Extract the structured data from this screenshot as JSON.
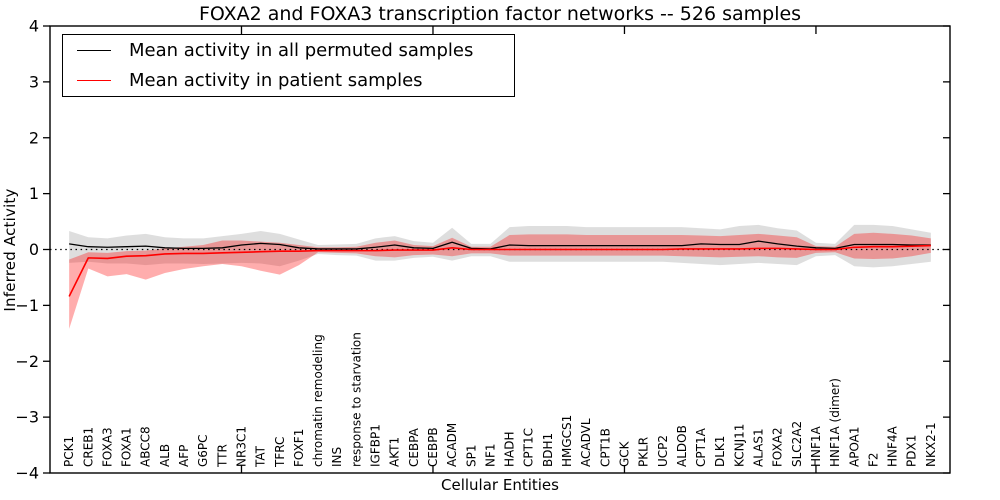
{
  "figure": {
    "title": "FOXA2 and FOXA3 transcription factor networks -- 526 samples",
    "xlabel": "Cellular Entities",
    "ylabel": "Inferred Activity",
    "legend": {
      "position": "upper left",
      "entries": [
        {
          "label": "Mean activity in all permuted samples",
          "color": "#000000"
        },
        {
          "label": "Mean activity in patient samples",
          "color": "#ff0000"
        }
      ]
    }
  },
  "chart_data": {
    "type": "line",
    "title": "FOXA2 and FOXA3 transcription factor networks -- 526 samples",
    "xlabel": "Cellular Entities",
    "ylabel": "Inferred Activity",
    "ylim": [
      -4,
      4
    ],
    "yticks": [
      4,
      3,
      2,
      1,
      0,
      -1,
      -2,
      -3,
      -4
    ],
    "ytick_labels": [
      "4",
      "3",
      "2",
      "1",
      "0",
      "−1",
      "−2",
      "−3",
      "−4"
    ],
    "xtick_positions": [
      10,
      20,
      30,
      40
    ],
    "grid": false,
    "legend_position": "upper left",
    "zero_line": {
      "y": 0,
      "style": "dotted",
      "color": "#000000"
    },
    "categories": [
      "PCK1",
      "CREB1",
      "FOXA3",
      "FOXA1",
      "ABCC8",
      "ALB",
      "AFP",
      "G6PC",
      "TTR",
      "NR3C1",
      "TAT",
      "TFRC",
      "FOXF1",
      "chromatin remodeling",
      "INS",
      "response to starvation",
      "IGFBP1",
      "AKT1",
      "CEBPA",
      "CEBPB",
      "ACADM",
      "SP1",
      "NF1",
      "HADH",
      "CPT1C",
      "BDH1",
      "HMGCS1",
      "ACADVL",
      "CPT1B",
      "GCK",
      "PKLR",
      "UCP2",
      "ALDOB",
      "CPT1A",
      "DLK1",
      "KCNJ11",
      "ALAS1",
      "FOXA2",
      "SLC2A2",
      "HNF1A",
      "HNF1A (dimer)",
      "APOA1",
      "F2",
      "HNF4A",
      "PDX1",
      "NKX2-1"
    ],
    "series": [
      {
        "name": "Mean activity in all permuted samples",
        "color": "#000000",
        "line_width": 1.3,
        "band_alpha": 0.13,
        "values": [
          0.1,
          0.05,
          0.04,
          0.05,
          0.06,
          0.03,
          0.02,
          0.02,
          0.03,
          0.08,
          0.11,
          0.09,
          0.03,
          0.01,
          0.01,
          0.01,
          0.04,
          0.08,
          0.03,
          0.02,
          0.13,
          0.02,
          0.01,
          0.08,
          0.07,
          0.07,
          0.07,
          0.07,
          0.07,
          0.07,
          0.07,
          0.07,
          0.07,
          0.1,
          0.09,
          0.09,
          0.15,
          0.1,
          0.06,
          0.03,
          0.02,
          0.09,
          0.09,
          0.09,
          0.08,
          0.08
        ],
        "band_upper": [
          0.33,
          0.22,
          0.2,
          0.25,
          0.28,
          0.22,
          0.2,
          0.2,
          0.24,
          0.28,
          0.33,
          0.28,
          0.18,
          0.08,
          0.09,
          0.1,
          0.2,
          0.24,
          0.15,
          0.12,
          0.39,
          0.1,
          0.1,
          0.4,
          0.42,
          0.42,
          0.42,
          0.4,
          0.4,
          0.4,
          0.4,
          0.4,
          0.4,
          0.38,
          0.36,
          0.42,
          0.44,
          0.38,
          0.34,
          0.12,
          0.1,
          0.44,
          0.44,
          0.42,
          0.36,
          0.3
        ],
        "band_lower": [
          -0.24,
          -0.22,
          -0.25,
          -0.25,
          -0.28,
          -0.25,
          -0.25,
          -0.26,
          -0.25,
          -0.24,
          -0.25,
          -0.3,
          -0.2,
          -0.08,
          -0.1,
          -0.11,
          -0.2,
          -0.2,
          -0.15,
          -0.13,
          -0.2,
          -0.12,
          -0.12,
          -0.22,
          -0.22,
          -0.22,
          -0.22,
          -0.22,
          -0.22,
          -0.22,
          -0.22,
          -0.22,
          -0.24,
          -0.26,
          -0.28,
          -0.26,
          -0.24,
          -0.26,
          -0.28,
          -0.12,
          -0.1,
          -0.3,
          -0.32,
          -0.3,
          -0.26,
          -0.22
        ]
      },
      {
        "name": "Mean activity in patient samples",
        "color": "#ff0000",
        "line_width": 1.6,
        "band_alpha": 0.32,
        "values": [
          -0.84,
          -0.15,
          -0.16,
          -0.12,
          -0.11,
          -0.08,
          -0.07,
          -0.07,
          -0.06,
          -0.05,
          -0.04,
          -0.03,
          -0.03,
          -0.02,
          -0.02,
          -0.02,
          -0.02,
          -0.01,
          -0.01,
          -0.01,
          0.03,
          0.0,
          0.0,
          0.0,
          0.0,
          0.0,
          0.0,
          0.0,
          0.0,
          0.0,
          0.0,
          0.0,
          0.01,
          0.01,
          0.01,
          0.01,
          0.02,
          0.02,
          0.01,
          0.0,
          0.0,
          0.04,
          0.05,
          0.05,
          0.06,
          0.07
        ],
        "band_upper": [
          -0.18,
          -0.05,
          -0.06,
          -0.03,
          -0.02,
          0.02,
          0.05,
          0.08,
          0.16,
          0.16,
          0.14,
          0.12,
          0.08,
          0.04,
          0.04,
          0.05,
          0.12,
          0.16,
          0.08,
          0.06,
          0.21,
          0.05,
          0.05,
          0.26,
          0.27,
          0.27,
          0.27,
          0.26,
          0.26,
          0.26,
          0.26,
          0.26,
          0.26,
          0.25,
          0.24,
          0.26,
          0.28,
          0.25,
          0.22,
          0.06,
          0.05,
          0.28,
          0.3,
          0.28,
          0.25,
          0.2
        ],
        "band_lower": [
          -1.42,
          -0.34,
          -0.48,
          -0.44,
          -0.54,
          -0.42,
          -0.35,
          -0.3,
          -0.26,
          -0.3,
          -0.38,
          -0.45,
          -0.28,
          -0.05,
          -0.06,
          -0.07,
          -0.12,
          -0.14,
          -0.1,
          -0.09,
          -0.12,
          -0.07,
          -0.07,
          -0.11,
          -0.11,
          -0.11,
          -0.11,
          -0.11,
          -0.11,
          -0.11,
          -0.11,
          -0.11,
          -0.12,
          -0.13,
          -0.14,
          -0.13,
          -0.12,
          -0.14,
          -0.15,
          -0.06,
          -0.05,
          -0.16,
          -0.17,
          -0.16,
          -0.12,
          -0.06
        ]
      }
    ]
  }
}
